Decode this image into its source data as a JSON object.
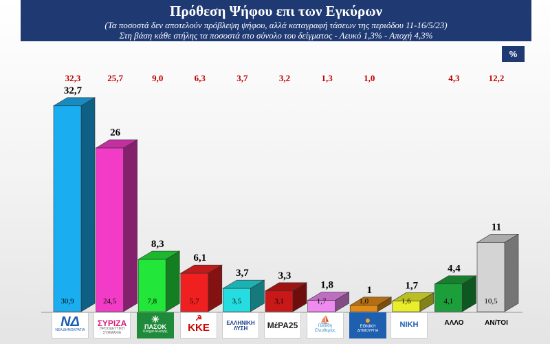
{
  "header": {
    "title": "Πρόθεση Ψήφου επι των Εγκύρων",
    "subtitle1": "(Τα ποσοστά δεν αποτελούν πρόβλεψη ψήφου, αλλά καταγραφή τάσεων της περιόδου  11-16/5/23)",
    "subtitle2": "Στη βάση κάθε στήλης τα ποσοστά στο σύνολο του δείγματος - Λευκό 1,3% - Αποχή 4,3%"
  },
  "unit_label": "%",
  "logos": {
    "nd": {
      "main": "ΝΔ",
      "small": "ΝΕΑ ΔΗΜΟΚΡΑΤΙΑ"
    },
    "syriza": {
      "main": "ΣΥΡΙΖΑ",
      "small": "ΠΡΟΟΔΕΥΤΙΚΗ ΣΥΜΜΑΧΙΑ"
    },
    "pasok": {
      "main": "ΠΑΣΟΚ",
      "small": "Κίνημα Αλλαγής"
    },
    "kke": {
      "main": "ΚΚΕ"
    },
    "elliniki": {
      "main": "ΕΛΛΗΝΙΚΗ",
      "small": "ΛΥΣΗ"
    },
    "mera25": {
      "main": "ΜέΡΑ25"
    },
    "plefsi": {
      "main": "Πλεύση",
      "small": "Ελευθερίας"
    },
    "ethniki": {
      "main": "ΕΘΝΙΚΗ",
      "small": "ΔΗΜΙΟΥΡΓΙΑ"
    },
    "niki": {
      "main": "ΝΙΚΗ"
    }
  },
  "colors": {
    "header_bg": "#1f3a73",
    "top_value": "#c00000"
  },
  "chart_data": {
    "type": "bar",
    "categories": [
      "ΝΔ",
      "ΣΥΡΙΖΑ",
      "ΠΑΣΟΚ",
      "ΚΚΕ",
      "ΕΛΛΗΝΙΚΗ ΛΥΣΗ",
      "ΜέΡΑ25",
      "Πλεύση Ελευθερίας",
      "ΕΘΝΙΚΗ ΔΗΜΙΟΥΡΓΙΑ",
      "ΝΙΚΗ",
      "ΑΛΛΟ",
      "ΑΝ/ΤΟΙ"
    ],
    "values": [
      32.7,
      26,
      8.3,
      6.1,
      3.7,
      3.3,
      1.8,
      1,
      1.7,
      4.4,
      11
    ],
    "value_labels": [
      "32,7",
      "26",
      "8,3",
      "6,1",
      "3,7",
      "3,3",
      "1,8",
      "1",
      "1,7",
      "4,4",
      "11"
    ],
    "base_labels": [
      "30,9",
      "24,5",
      "7,8",
      "5,7",
      "3,5",
      "3,1",
      "1,7",
      "1,0",
      "1,6",
      "4,1",
      "10,5"
    ],
    "top_labels": [
      "32,3",
      "25,7",
      "9,0",
      "6,3",
      "3,7",
      "3,2",
      "1,3",
      "1,0",
      "",
      "4,3",
      "12,2"
    ],
    "colors": [
      "#1aaef0",
      "#f23bc7",
      "#22e63a",
      "#f02020",
      "#25dde0",
      "#c81818",
      "#ee8af0",
      "#e08a18",
      "#eaee2a",
      "#1c9e3a",
      "#d4d4d4"
    ],
    "x_tick_labels": [
      "",
      "",
      "",
      "",
      "",
      "",
      "",
      "",
      "",
      "ΑΛΛΟ",
      "ΑΝ/ΤΟΙ"
    ]
  }
}
